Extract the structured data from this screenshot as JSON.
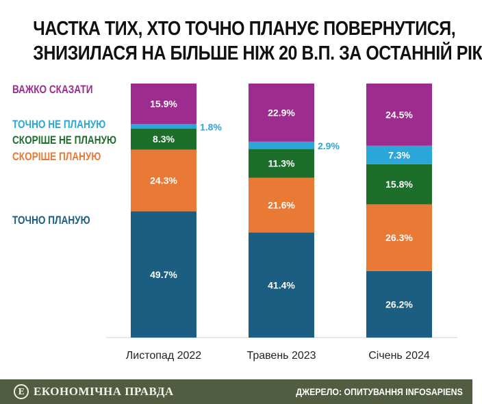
{
  "title_lines": [
    "ЧАСТКА ТИХ, ХТО ТОЧНО ПЛАНУЄ ПОВЕРНУТИСЯ,",
    "ЗНИЗИЛАСЯ НА БІЛЬШЕ НІЖ 20 В.П. ЗА ОСТАННІЙ РІК"
  ],
  "footer": {
    "brand": "ЕКОНОМІЧНА ПРАВДА",
    "logo_glyph": "Е",
    "source": "ДЖЕРЕЛО: ОПИТУВАННЯ INFOSAPIENS"
  },
  "chart_data": {
    "type": "bar",
    "stacked": true,
    "categories": [
      "Листопад 2022",
      "Травень 2023",
      "Січень 2024"
    ],
    "series": [
      {
        "name": "ТОЧНО ПЛАНУЮ",
        "color": "#1b5e82",
        "values": [
          49.7,
          41.4,
          26.2
        ],
        "labels": [
          "49.7%",
          "41.4%",
          "26.2%"
        ]
      },
      {
        "name": "СКОРІШЕ ПЛАНУЮ",
        "color": "#e87a35",
        "values": [
          24.3,
          21.6,
          26.3
        ],
        "labels": [
          "24.3%",
          "21.6%",
          "26.3%"
        ]
      },
      {
        "name": "СКОРІШЕ НЕ ПЛАНУЮ",
        "color": "#1e6e2b",
        "values": [
          8.3,
          11.3,
          15.8
        ],
        "labels": [
          "8.3%",
          "11.3%",
          "15.8%"
        ]
      },
      {
        "name": "ТОЧНО НЕ ПЛАНУЮ",
        "color": "#2aa6d8",
        "values": [
          1.8,
          2.9,
          7.3
        ],
        "labels": [
          "1.8%",
          "2.9%",
          "7.3%"
        ]
      },
      {
        "name": "ВАЖКО СКАЗАТИ",
        "color": "#9c2d8f",
        "values": [
          15.9,
          22.9,
          24.5
        ],
        "labels": [
          "15.9%",
          "22.9%",
          "24.5%"
        ]
      }
    ],
    "ylim": [
      0,
      100
    ],
    "legend": "left"
  }
}
